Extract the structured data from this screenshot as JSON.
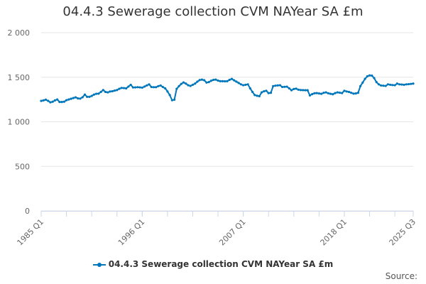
{
  "chart_data": {
    "type": "line",
    "title": "04.4.3 Sewerage collection CVM NAYear SA £m",
    "xlabel": "",
    "ylabel": "",
    "ylim": [
      0,
      2000
    ],
    "yticks": [
      0,
      500,
      1000,
      1500,
      2000
    ],
    "ytick_labels": [
      "0",
      "500",
      "1 000",
      "1 500",
      "2 000"
    ],
    "x_start": "1985 Q1",
    "x_end": "2025 Q3",
    "xtick_labels": [
      {
        "label": "1985 Q1",
        "index": 0
      },
      {
        "label": "1996 Q1",
        "index": 44
      },
      {
        "label": "2007 Q1",
        "index": 88
      },
      {
        "label": "2018 Q1",
        "index": 132
      },
      {
        "label": "2025 Q3",
        "index": 162
      }
    ],
    "grid": true,
    "legend_position": "bottom",
    "series": [
      {
        "name": "04.4.3 Sewerage collection CVM NAYear SA £m",
        "color": "#0077bb",
        "values": [
          1234,
          1240,
          1248,
          1235,
          1218,
          1225,
          1240,
          1250,
          1222,
          1222,
          1225,
          1242,
          1250,
          1258,
          1266,
          1274,
          1262,
          1260,
          1275,
          1305,
          1280,
          1280,
          1290,
          1305,
          1314,
          1316,
          1335,
          1356,
          1335,
          1330,
          1340,
          1343,
          1350,
          1356,
          1370,
          1380,
          1378,
          1375,
          1395,
          1415,
          1385,
          1386,
          1388,
          1386,
          1383,
          1395,
          1408,
          1420,
          1390,
          1388,
          1388,
          1400,
          1407,
          1390,
          1375,
          1340,
          1300,
          1242,
          1248,
          1370,
          1400,
          1425,
          1441,
          1428,
          1410,
          1402,
          1415,
          1428,
          1450,
          1468,
          1473,
          1466,
          1440,
          1445,
          1460,
          1470,
          1473,
          1462,
          1455,
          1455,
          1454,
          1455,
          1470,
          1481,
          1465,
          1450,
          1435,
          1420,
          1410,
          1415,
          1420,
          1375,
          1335,
          1300,
          1292,
          1287,
          1330,
          1342,
          1348,
          1322,
          1325,
          1400,
          1405,
          1408,
          1410,
          1390,
          1392,
          1394,
          1375,
          1354,
          1368,
          1372,
          1360,
          1356,
          1355,
          1354,
          1354,
          1296,
          1310,
          1320,
          1322,
          1318,
          1314,
          1325,
          1330,
          1320,
          1314,
          1309,
          1322,
          1330,
          1326,
          1322,
          1348,
          1340,
          1335,
          1325,
          1316,
          1318,
          1325,
          1400,
          1440,
          1481,
          1510,
          1520,
          1518,
          1490,
          1445,
          1420,
          1407,
          1405,
          1402,
          1420,
          1415,
          1412,
          1410,
          1428,
          1420,
          1418,
          1415,
          1420,
          1422,
          1425,
          1428
        ]
      }
    ]
  },
  "source_label": "Source:"
}
